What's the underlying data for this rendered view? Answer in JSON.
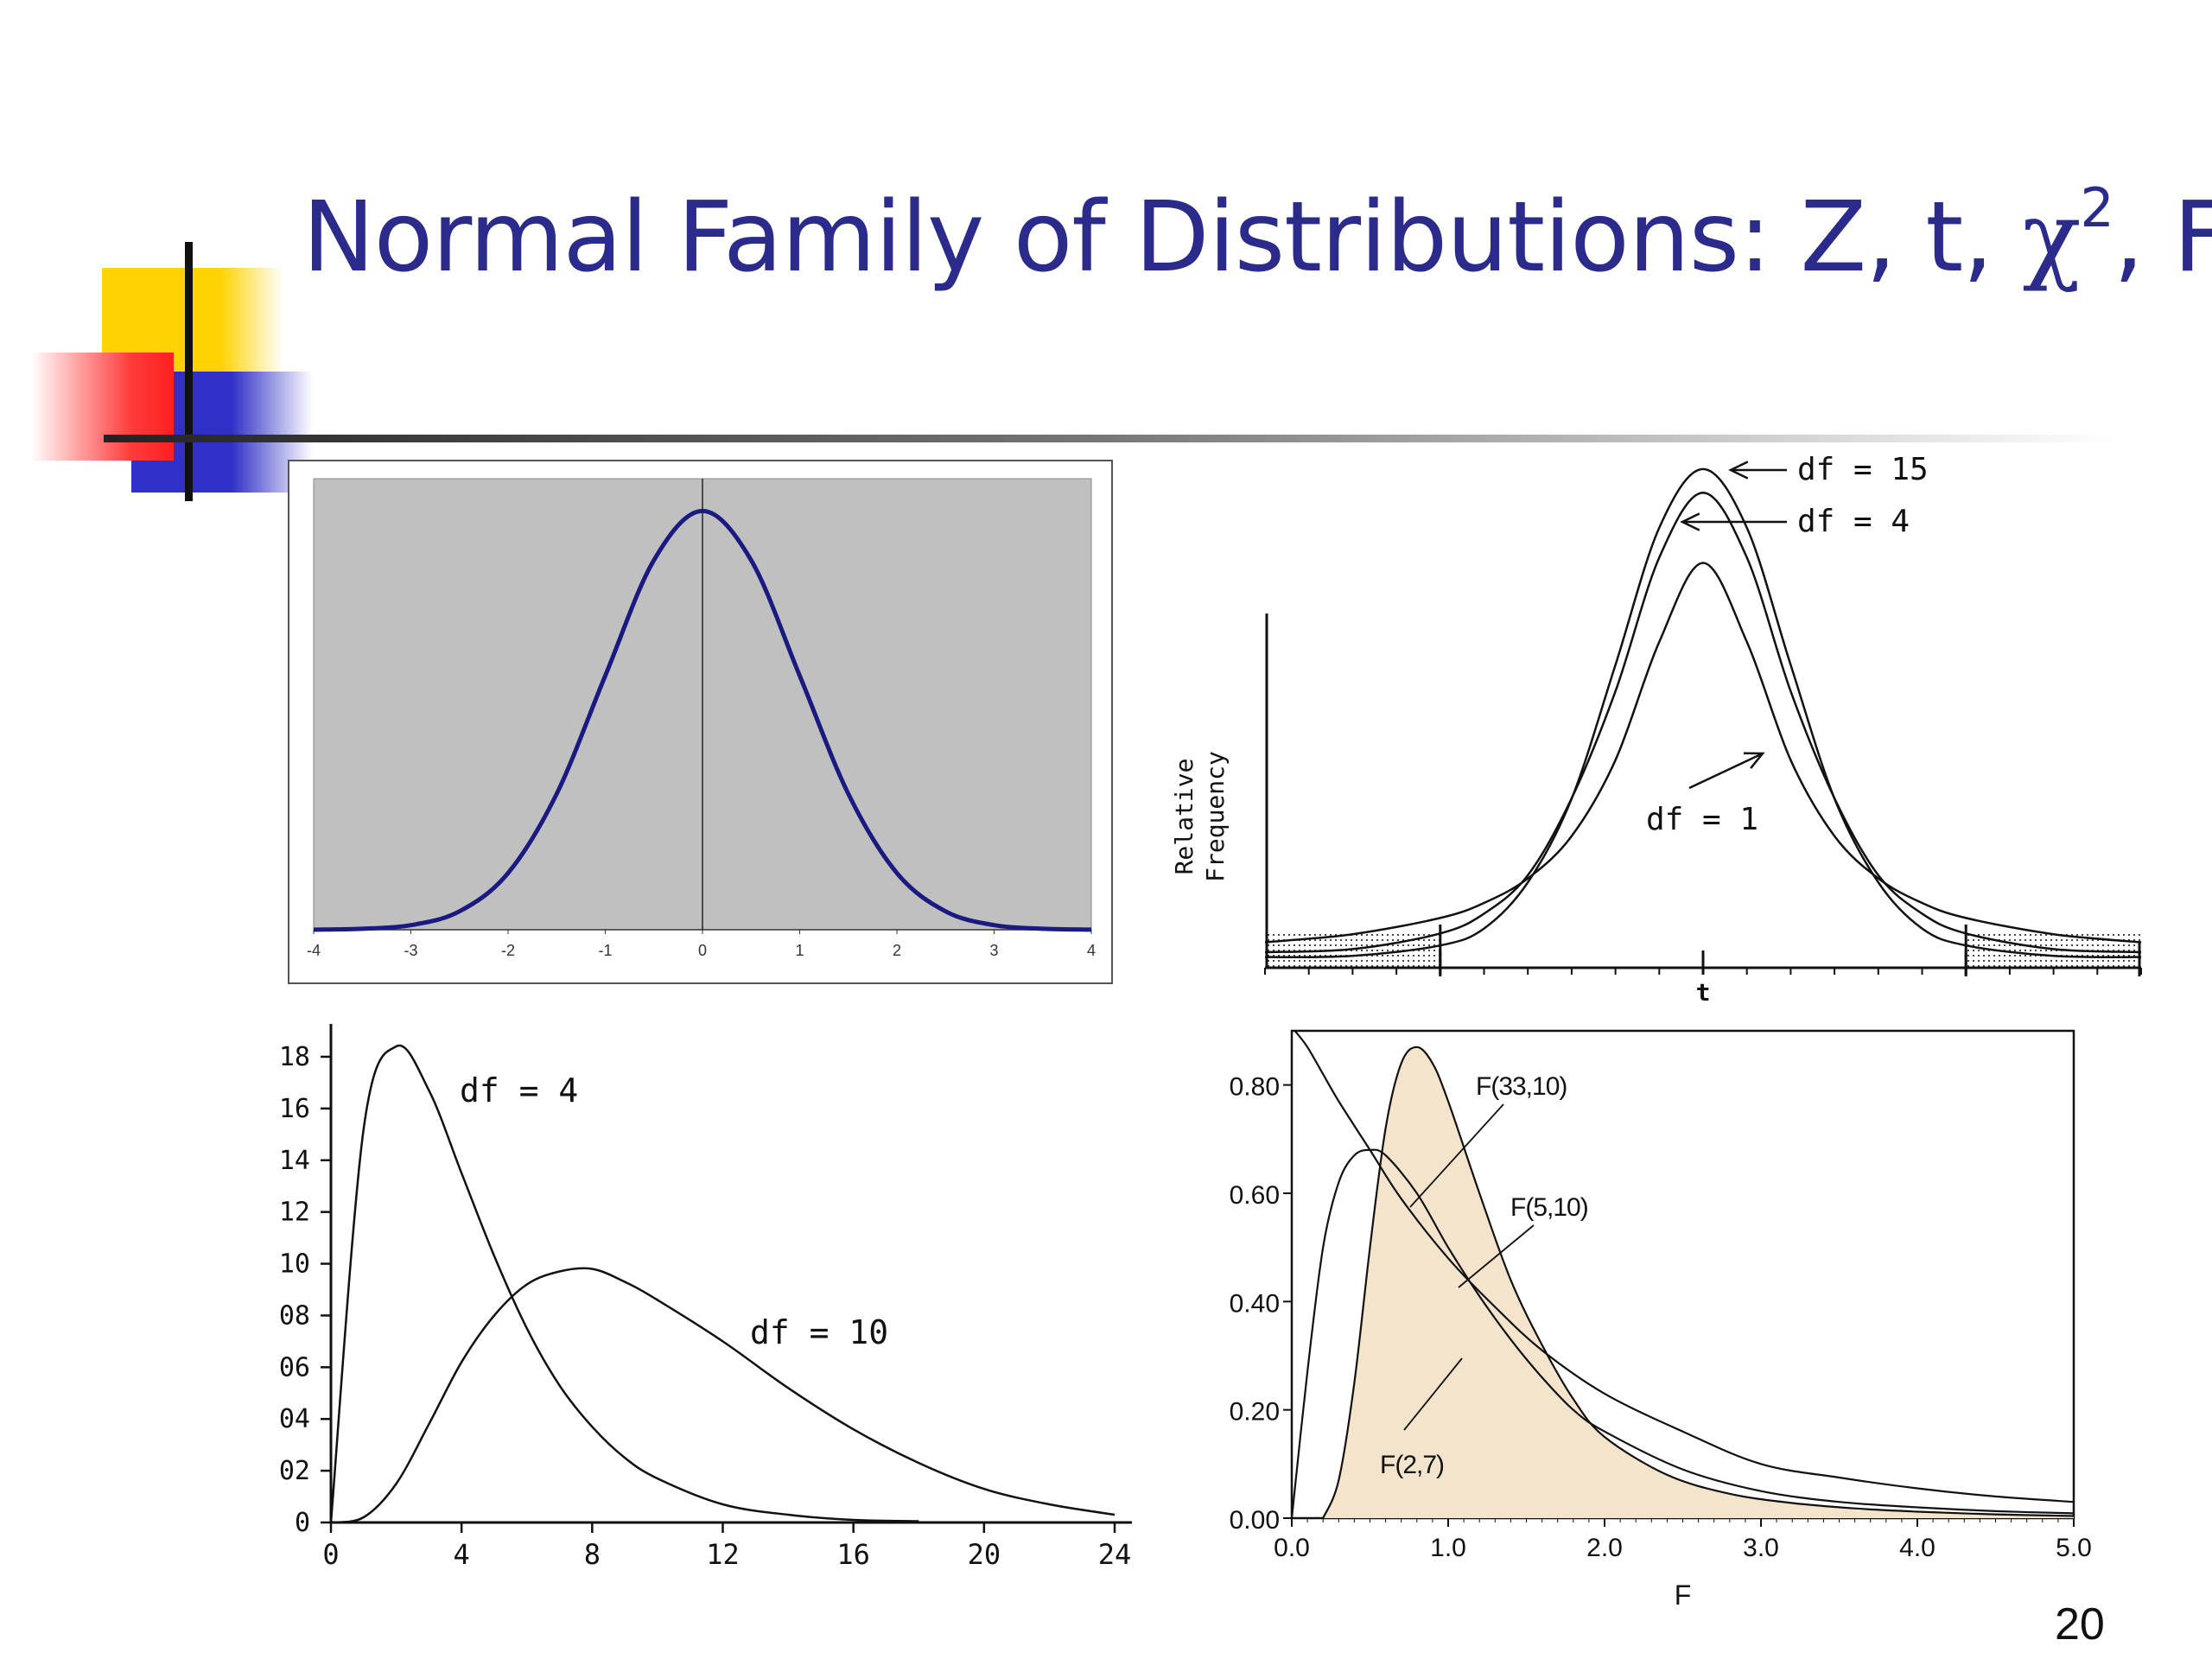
{
  "slide": {
    "title_text": "Normal Family of Distributions: Z, t, ",
    "title_chi": "χ",
    "title_sup": "2",
    "title_tail": ", F",
    "page_number": "20",
    "colors": {
      "title": "#2b2b8c",
      "accent_yellow": "#ffd200",
      "accent_red": "#ff3b3b",
      "accent_blue": "#3030c8",
      "rule": "#444444"
    }
  },
  "chart_data": [
    {
      "type": "line",
      "id": "z-normal",
      "xlim": [
        -4,
        4
      ],
      "ylim": [
        0,
        0.4
      ],
      "x_ticks": [
        "-4",
        "-3",
        "-2",
        "-1",
        "0",
        "1",
        "2",
        "3",
        "4"
      ],
      "series": [
        {
          "x": [
            -4,
            -3.5,
            -3,
            -2.5,
            -2,
            -1.5,
            -1,
            -0.5,
            0,
            0.5,
            1,
            1.5,
            2,
            2.5,
            3,
            3.5,
            4
          ],
          "y": [
            0.0001,
            0.0009,
            0.0044,
            0.0175,
            0.054,
            0.1295,
            0.242,
            0.3521,
            0.3989,
            0.3521,
            0.242,
            0.1295,
            0.054,
            0.0175,
            0.0044,
            0.0009,
            0.0001
          ]
        }
      ],
      "colors": {
        "background": "#c0c0c0",
        "curve": "#1a1a80"
      },
      "grid": false
    },
    {
      "type": "line",
      "id": "t-distribution",
      "xlabel": "t",
      "ylabel_lines": [
        "Relative",
        "Frequency"
      ],
      "xlim": [
        -5,
        5
      ],
      "ylim": [
        0,
        0.4
      ],
      "series": [
        {
          "name": "df = 15",
          "x": [
            -5,
            -4,
            -3,
            -2.5,
            -2,
            -1.5,
            -1,
            -0.5,
            0,
            0.5,
            1,
            1.5,
            2,
            2.5,
            3,
            4,
            5
          ],
          "y": [
            0.0002,
            0.0012,
            0.0096,
            0.0233,
            0.0605,
            0.1281,
            0.236,
            0.3467,
            0.394,
            0.3467,
            0.236,
            0.1281,
            0.0605,
            0.0233,
            0.0096,
            0.0012,
            0.0002
          ]
        },
        {
          "name": "df = 4",
          "x": [
            -5,
            -4,
            -3,
            -2.5,
            -2,
            -1.5,
            -1,
            -0.5,
            0,
            0.5,
            1,
            1.5,
            2,
            2.5,
            3,
            4,
            5
          ],
          "y": [
            0.0042,
            0.0067,
            0.0193,
            0.0353,
            0.0663,
            0.1284,
            0.2147,
            0.3226,
            0.375,
            0.3226,
            0.2147,
            0.1284,
            0.0663,
            0.0353,
            0.0193,
            0.0067,
            0.0042
          ]
        },
        {
          "name": "df = 1",
          "x": [
            -5,
            -4,
            -3,
            -2.5,
            -2,
            -1.5,
            -1,
            -0.5,
            0,
            0.5,
            1,
            1.5,
            2,
            2.5,
            3,
            4,
            5
          ],
          "y": [
            0.0122,
            0.0187,
            0.0318,
            0.0439,
            0.0637,
            0.0979,
            0.1592,
            0.2546,
            0.3183,
            0.2546,
            0.1592,
            0.0979,
            0.0637,
            0.0439,
            0.0318,
            0.0187,
            0.0122
          ]
        }
      ],
      "annotations": [
        "df = 15",
        "df = 4",
        "df = 1"
      ],
      "grid": false
    },
    {
      "type": "line",
      "id": "chi-square",
      "xlim": [
        0,
        24
      ],
      "ylim": [
        0,
        18
      ],
      "x_ticks": [
        "0",
        "4",
        "8",
        "12",
        "16",
        "20",
        "24"
      ],
      "y_ticks": [
        "0",
        "02",
        "04",
        "06",
        "08",
        "10",
        "12",
        "14",
        "16",
        "18"
      ],
      "series": [
        {
          "name": "df = 4",
          "x": [
            0,
            1,
            2,
            3,
            4,
            5,
            6,
            7,
            8,
            9,
            10,
            12,
            14,
            16,
            18
          ],
          "y": [
            0,
            15.2,
            18.4,
            16.7,
            13.5,
            10.3,
            7.5,
            5.3,
            3.7,
            2.5,
            1.7,
            0.7,
            0.3,
            0.1,
            0.05
          ]
        },
        {
          "name": "df = 10",
          "x": [
            0,
            1,
            2,
            3,
            4,
            5,
            6,
            7,
            8,
            9,
            10,
            12,
            14,
            16,
            18,
            20,
            22,
            24
          ],
          "y": [
            0,
            0.2,
            1.5,
            3.8,
            6.2,
            8.0,
            9.2,
            9.7,
            9.8,
            9.3,
            8.6,
            7.0,
            5.2,
            3.6,
            2.3,
            1.3,
            0.7,
            0.3
          ]
        }
      ],
      "annotations": [
        "df = 4",
        "df = 10"
      ],
      "grid": false
    },
    {
      "type": "area",
      "id": "f-distribution",
      "xlabel": "F",
      "xlim": [
        0,
        5
      ],
      "ylim": [
        0,
        0.9
      ],
      "x_ticks": [
        "0.0",
        "1.0",
        "2.0",
        "3.0",
        "4.0",
        "5.0"
      ],
      "y_ticks": [
        "0.00",
        "0.20",
        "0.40",
        "0.60",
        "0.80"
      ],
      "series": [
        {
          "name": "F(33,10)",
          "x": [
            0.2,
            0.3,
            0.4,
            0.5,
            0.6,
            0.7,
            0.8,
            0.9,
            1.0,
            1.2,
            1.4,
            1.6,
            1.8,
            2.0,
            2.4,
            2.8,
            3.2,
            3.6,
            4.0,
            4.5,
            5.0
          ],
          "y": [
            0.0,
            0.07,
            0.25,
            0.5,
            0.72,
            0.84,
            0.87,
            0.84,
            0.77,
            0.6,
            0.44,
            0.32,
            0.22,
            0.15,
            0.08,
            0.045,
            0.028,
            0.018,
            0.012,
            0.007,
            0.004
          ]
        },
        {
          "name": "F(5,10)",
          "x": [
            0.0,
            0.1,
            0.2,
            0.3,
            0.4,
            0.5,
            0.6,
            0.8,
            1.0,
            1.2,
            1.4,
            1.6,
            1.8,
            2.0,
            2.5,
            3.0,
            3.5,
            4.0,
            4.5,
            5.0
          ],
          "y": [
            0.0,
            0.27,
            0.5,
            0.62,
            0.67,
            0.68,
            0.67,
            0.6,
            0.5,
            0.41,
            0.33,
            0.26,
            0.2,
            0.16,
            0.09,
            0.05,
            0.03,
            0.02,
            0.013,
            0.009
          ]
        },
        {
          "name": "F(2,7)",
          "x": [
            0.02,
            0.1,
            0.2,
            0.3,
            0.5,
            0.7,
            1.0,
            1.3,
            1.6,
            2.0,
            2.5,
            3.0,
            3.5,
            4.0,
            4.5,
            5.0
          ],
          "y": [
            0.9,
            0.87,
            0.82,
            0.77,
            0.68,
            0.59,
            0.48,
            0.39,
            0.31,
            0.23,
            0.16,
            0.1,
            0.075,
            0.055,
            0.04,
            0.03
          ]
        }
      ],
      "annotations": [
        "F(33,10)",
        "F(5,10)",
        "F(2,7)"
      ],
      "colors": {
        "fill": "#f5e4cc"
      },
      "grid": false
    }
  ]
}
